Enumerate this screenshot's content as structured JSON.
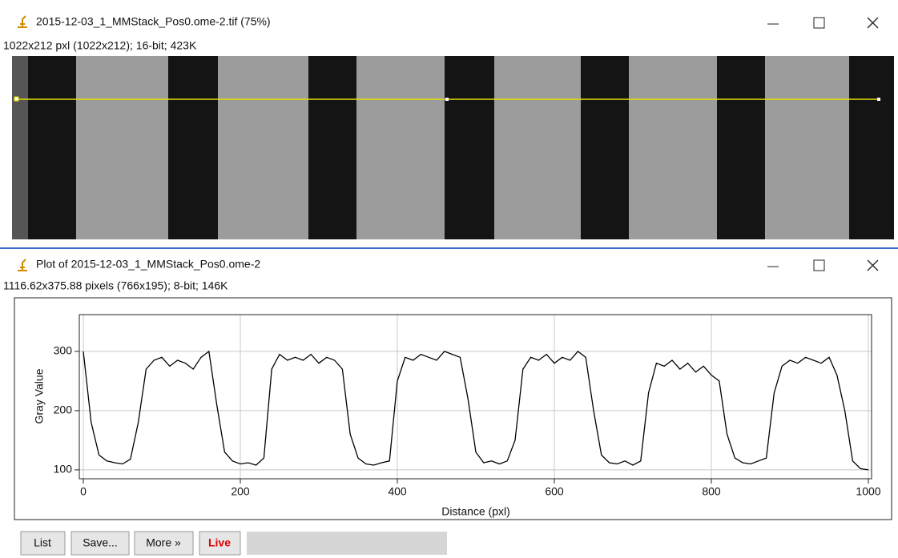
{
  "windows": [
    {
      "title": "2015-12-03_1_MMStack_Pos0.ome-2.tif (75%)",
      "info": "1022x212 pxl (1022x212); 16-bit; 423K"
    },
    {
      "title": "Plot of 2015-12-03_1_MMStack_Pos0.ome-2",
      "info": "1116.62x375.88 pixels (766x195); 8-bit; 146K"
    }
  ],
  "buttons": [
    "List",
    "Save...",
    "More »",
    "Live"
  ],
  "chart_data": {
    "type": "line",
    "x_label": "Distance (pxl)",
    "y_label": "Gray Value",
    "color": "#000000",
    "grid": true,
    "x": [
      0,
      10,
      20,
      30,
      40,
      50,
      60,
      70,
      80,
      90,
      100,
      110,
      120,
      130,
      140,
      150,
      160,
      170,
      180,
      190,
      200,
      210,
      220,
      230,
      240,
      250,
      260,
      270,
      280,
      290,
      300,
      310,
      320,
      330,
      340,
      350,
      360,
      370,
      380,
      390,
      400,
      410,
      420,
      430,
      440,
      450,
      460,
      470,
      480,
      490,
      500,
      510,
      520,
      530,
      540,
      550,
      560,
      570,
      580,
      590,
      600,
      610,
      620,
      630,
      640,
      650,
      660,
      670,
      680,
      690,
      700,
      710,
      720,
      730,
      740,
      750,
      760,
      770,
      780,
      790,
      800,
      810,
      820,
      830,
      840,
      850,
      860,
      870,
      880,
      890,
      900,
      910,
      920,
      930,
      940,
      950,
      960,
      970,
      980,
      990,
      1000
    ],
    "values": [
      300,
      180,
      125,
      115,
      112,
      110,
      118,
      180,
      270,
      285,
      290,
      275,
      285,
      280,
      270,
      290,
      300,
      210,
      130,
      115,
      110,
      112,
      108,
      120,
      270,
      295,
      285,
      290,
      285,
      295,
      280,
      290,
      285,
      270,
      160,
      120,
      110,
      108,
      112,
      115,
      250,
      290,
      285,
      295,
      290,
      285,
      300,
      295,
      290,
      220,
      130,
      112,
      115,
      110,
      115,
      150,
      270,
      290,
      285,
      295,
      280,
      290,
      285,
      300,
      290,
      200,
      125,
      112,
      110,
      115,
      108,
      115,
      230,
      280,
      275,
      285,
      270,
      280,
      265,
      275,
      260,
      250,
      160,
      120,
      112,
      110,
      115,
      120,
      230,
      275,
      285,
      280,
      290,
      285,
      280,
      290,
      260,
      200,
      115,
      102,
      100
    ],
    "xlim": [
      0,
      1000
    ],
    "xticks": [
      0,
      200,
      400,
      600,
      800,
      1000
    ],
    "ylim": [
      85,
      362
    ],
    "yticks": [
      100,
      200,
      300
    ]
  }
}
